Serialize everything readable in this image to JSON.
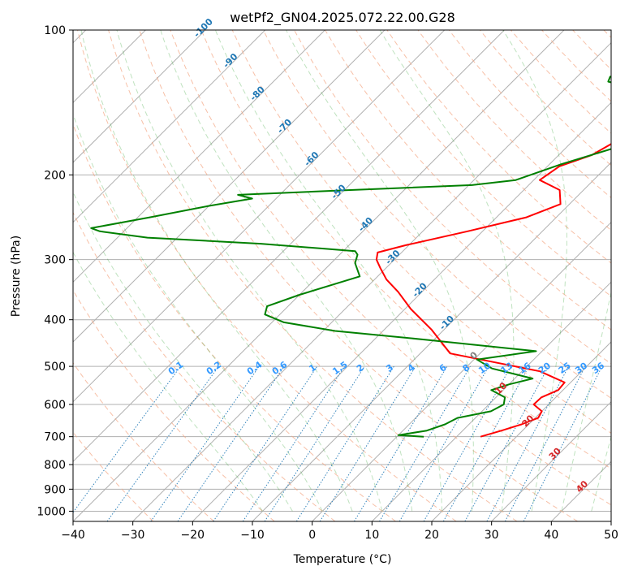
{
  "chart_data": {
    "type": "line",
    "title": "wetPf2_GN04.2025.072.22.00.G28",
    "xlabel": "Temperature (°C)",
    "ylabel": "Pressure (hPa)",
    "xlim": [
      -40,
      50
    ],
    "ylim": [
      1050,
      100
    ],
    "y_scale": "log",
    "x_ticks": [
      -40,
      -30,
      -20,
      -10,
      0,
      10,
      20,
      30,
      40,
      50
    ],
    "x_tick_labels": [
      "−40",
      "−30",
      "−20",
      "−10",
      "0",
      "10",
      "20",
      "30",
      "40",
      "50"
    ],
    "y_ticks": [
      100,
      200,
      300,
      400,
      500,
      600,
      700,
      800,
      900,
      1000
    ],
    "y_tick_labels": [
      "100",
      "200",
      "300",
      "400",
      "500",
      "600",
      "700",
      "800",
      "900",
      "1000"
    ],
    "grid": true,
    "series": [
      {
        "role": "temperature",
        "color": "#ff0000",
        "points": [
          [
            14.0,
            700
          ],
          [
            16.5,
            680
          ],
          [
            18.8,
            660
          ],
          [
            20.5,
            640
          ],
          [
            20.0,
            620
          ],
          [
            17.5,
            600
          ],
          [
            17.6,
            580
          ],
          [
            19.2,
            560
          ],
          [
            19.0,
            540
          ],
          [
            13.0,
            512
          ],
          [
            -5.0,
            470
          ],
          [
            -12.0,
            420
          ],
          [
            -19.0,
            380
          ],
          [
            -24.0,
            350
          ],
          [
            -28.0,
            330
          ],
          [
            -31.0,
            312
          ],
          [
            -33.0,
            300
          ],
          [
            -34.0,
            290
          ],
          [
            -30.5,
            280
          ],
          [
            -22.5,
            262
          ],
          [
            -15.0,
            245
          ],
          [
            -11.5,
            230
          ],
          [
            -14.0,
            215
          ],
          [
            -19.0,
            205
          ],
          [
            -18.0,
            192
          ],
          [
            -14.5,
            182
          ],
          [
            -13.0,
            172
          ],
          [
            -12.0,
            160
          ],
          [
            -12.0,
            148
          ],
          [
            -12.5,
            140
          ],
          [
            -16.5,
            132
          ],
          [
            -22.0,
            125
          ],
          [
            -23.0,
            120
          ],
          [
            -20.0,
            115
          ],
          [
            -14.0,
            112
          ],
          [
            -9.0,
            108
          ],
          [
            -5.0,
            104
          ],
          [
            -3.0,
            100
          ]
        ]
      },
      {
        "role": "dewpoint",
        "color": "#008000",
        "points": [
          [
            4.5,
            700
          ],
          [
            0.0,
            695
          ],
          [
            4.0,
            680
          ],
          [
            6.0,
            660
          ],
          [
            7.0,
            640
          ],
          [
            11.5,
            620
          ],
          [
            12.5,
            600
          ],
          [
            11.5,
            580
          ],
          [
            8.0,
            560
          ],
          [
            10.0,
            545
          ],
          [
            13.0,
            530
          ],
          [
            4.5,
            505
          ],
          [
            0.5,
            484
          ],
          [
            9.0,
            465
          ],
          [
            -11.5,
            440
          ],
          [
            -28.0,
            422
          ],
          [
            -38.0,
            405
          ],
          [
            -42.5,
            390
          ],
          [
            -43.5,
            375
          ],
          [
            -40.0,
            355
          ],
          [
            -33.0,
            325
          ],
          [
            -36.0,
            305
          ],
          [
            -37.0,
            293
          ],
          [
            -38.0,
            288
          ],
          [
            -43.0,
            285
          ],
          [
            -55.0,
            278
          ],
          [
            -75.0,
            270
          ],
          [
            -84.0,
            262
          ],
          [
            -86.0,
            258
          ],
          [
            -78.0,
            245
          ],
          [
            -70.0,
            232
          ],
          [
            -64.0,
            224
          ],
          [
            -67.0,
            220
          ],
          [
            -49.0,
            215
          ],
          [
            -29.5,
            210
          ],
          [
            -23.0,
            205
          ],
          [
            -18.0,
            190
          ],
          [
            -11.5,
            175
          ],
          [
            -11.0,
            165
          ],
          [
            -10.5,
            155
          ],
          [
            -11.0,
            145
          ],
          [
            -15.0,
            135
          ],
          [
            -24.0,
            128
          ],
          [
            -24.5,
            125
          ],
          [
            -16.5,
            120
          ],
          [
            -13.0,
            115
          ],
          [
            -11.5,
            110
          ],
          [
            -11.0,
            105
          ],
          [
            -8.0,
            100
          ]
        ]
      }
    ],
    "dry_adiabat_labels": [
      "-100",
      "-90",
      "-80",
      "-70",
      "-60",
      "-50",
      "-40",
      "-30",
      "-20",
      "-10",
      "0",
      "10",
      "20",
      "30",
      "40"
    ],
    "mixing_ratio_labels": [
      "0.1",
      "0.2",
      "0.4",
      "0.6",
      "1",
      "1.5",
      "2",
      "3",
      "4",
      "6",
      "8",
      "10",
      "13",
      "16",
      "20",
      "25",
      "30",
      "36"
    ]
  }
}
